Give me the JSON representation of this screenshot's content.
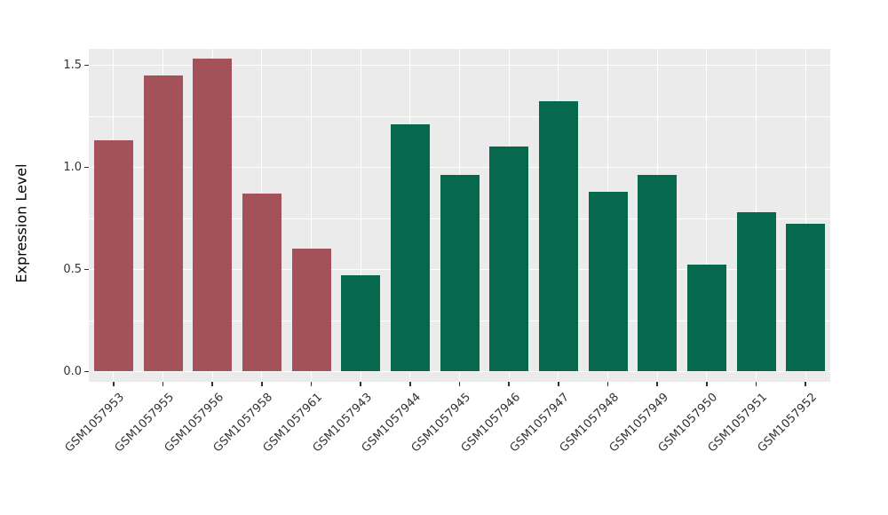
{
  "chart_data": {
    "type": "bar",
    "title": "",
    "xlabel": "",
    "ylabel": "Expression Level",
    "ylim": [
      0,
      1.63
    ],
    "yticks": [
      0.0,
      0.5,
      1.0,
      1.5
    ],
    "ytick_labels": [
      "0.0",
      "0.5",
      "1.0",
      "1.5"
    ],
    "yticks_minor": [
      0.25,
      0.75,
      1.25
    ],
    "grid": "on",
    "legend_position": "none",
    "panel_background_color": "#EBEBEB",
    "gridline_color": "#FFFFFF",
    "categories": [
      "GSM1057953",
      "GSM1057955",
      "GSM1057956",
      "GSM1057958",
      "GSM1057961",
      "GSM1057943",
      "GSM1057944",
      "GSM1057945",
      "GSM1057946",
      "GSM1057947",
      "GSM1057948",
      "GSM1057949",
      "GSM1057950",
      "GSM1057951",
      "GSM1057952"
    ],
    "values": [
      1.13,
      1.45,
      1.53,
      0.87,
      0.6,
      0.47,
      1.21,
      0.96,
      1.1,
      1.32,
      0.88,
      0.96,
      0.52,
      0.78,
      0.72
    ],
    "groups": [
      "group1",
      "group1",
      "group1",
      "group1",
      "group1",
      "group2",
      "group2",
      "group2",
      "group2",
      "group2",
      "group2",
      "group2",
      "group2",
      "group2",
      "group2"
    ],
    "group_colors": {
      "group1": "#A4525A",
      "group2": "#06694D"
    }
  }
}
